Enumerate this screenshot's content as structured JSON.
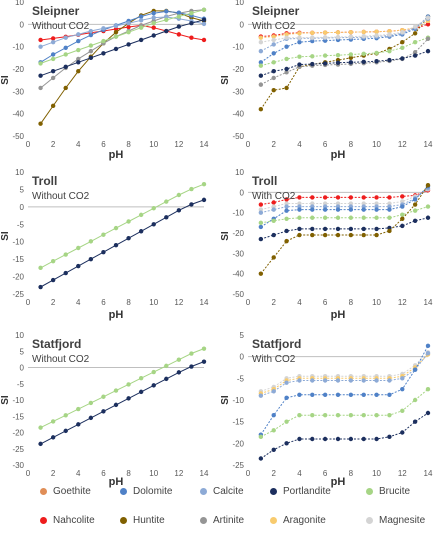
{
  "chart_data": [
    {
      "type": "line",
      "title": "Sleipner",
      "subtitle": "Without CO2",
      "xlabel": "pH",
      "ylabel": "SI",
      "xlim": [
        0,
        14
      ],
      "ylim": [
        -50,
        10
      ],
      "yticks": [
        10,
        0,
        -10,
        -20,
        -30,
        -40,
        -50
      ],
      "xticks": [
        0,
        2,
        4,
        6,
        8,
        10,
        12,
        14
      ],
      "x": [
        1,
        2,
        3,
        4,
        5,
        6,
        7,
        8,
        9,
        10,
        11,
        12,
        13,
        14
      ],
      "series": [
        {
          "name": "Nahcolite",
          "values": [
            -7,
            -6.3,
            -5.6,
            -4.7,
            -3.8,
            -3,
            -2.1,
            -1.2,
            -0.5,
            -1.5,
            -3,
            -4.5,
            -6,
            -7
          ]
        },
        {
          "name": "Huntite",
          "values": [
            -44.5,
            -36.5,
            -28.5,
            -21,
            -14.5,
            -8.5,
            -3.5,
            0.5,
            4,
            6,
            6,
            5,
            3,
            1.5
          ]
        },
        {
          "name": "Artinite",
          "values": [
            -28.5,
            -24,
            -19.5,
            -15.5,
            -12,
            -8.5,
            -5.5,
            -3,
            -0.5,
            1.5,
            3.5,
            5,
            6,
            6.5
          ]
        },
        {
          "name": "Dolomite",
          "values": [
            -17,
            -13.5,
            -10.5,
            -7.5,
            -4.8,
            -2.5,
            -0.5,
            1.5,
            3.5,
            5,
            5.8,
            5.2,
            4,
            2.5
          ]
        },
        {
          "name": "Calcite",
          "values": [
            -10,
            -8,
            -6,
            -4.5,
            -3,
            -1.8,
            -0.7,
            0.5,
            1.8,
            3,
            3.3,
            2.5,
            1.5,
            0.2
          ]
        },
        {
          "name": "Brucite",
          "values": [
            -17.5,
            -15.5,
            -13.5,
            -11.5,
            -9.5,
            -7.5,
            -5.5,
            -3.5,
            -1.5,
            0.5,
            2,
            3.5,
            5,
            6.5
          ]
        },
        {
          "name": "Portlandite",
          "values": [
            -23,
            -21,
            -19,
            -17,
            -15,
            -13,
            -11,
            -9,
            -7,
            -5,
            -3,
            -1,
            0.5,
            2
          ]
        }
      ]
    },
    {
      "type": "line",
      "title": "Sleipner",
      "subtitle": "With CO2",
      "xlabel": "pH",
      "ylabel": "SI",
      "xlim": [
        0,
        14
      ],
      "ylim": [
        -50,
        10
      ],
      "yticks": [
        10,
        0,
        -10,
        -20,
        -30,
        -40,
        -50
      ],
      "xticks": [
        0,
        2,
        4,
        6,
        8,
        10,
        12,
        14
      ],
      "x": [
        1,
        2,
        3,
        4,
        5,
        6,
        7,
        8,
        9,
        10,
        11,
        12,
        13,
        14
      ],
      "series": [
        {
          "name": "Nahcolite",
          "values": [
            -5.5,
            -5,
            -4,
            -3.8,
            -3.8,
            -3.7,
            -3.6,
            -3.5,
            -3.4,
            -3.3,
            -3.1,
            -2.6,
            -1.8,
            0
          ]
        },
        {
          "name": "Huntite",
          "values": [
            -38,
            -29.5,
            -28.5,
            -19,
            -18,
            -17,
            -16,
            -15,
            -14,
            -13,
            -11,
            -8,
            -4,
            3.5
          ]
        },
        {
          "name": "Aragonite",
          "values": [
            -6,
            -5.5,
            -4.5,
            -4,
            -3.8,
            -3.7,
            -3.6,
            -3.5,
            -3.4,
            -3.3,
            -3.1,
            -2.6,
            -1.5,
            1.5
          ]
        },
        {
          "name": "Dolomite",
          "values": [
            -17,
            -13,
            -10,
            -8,
            -7.5,
            -7.3,
            -7,
            -6.8,
            -6.5,
            -6.2,
            -5.5,
            -4.5,
            -2,
            3.5
          ]
        },
        {
          "name": "Calcite",
          "values": [
            -12,
            -9,
            -6.5,
            -6.3,
            -6.2,
            -6.1,
            -6,
            -5.9,
            -5.8,
            -5.5,
            -5,
            -4,
            -1.5,
            2.5
          ]
        },
        {
          "name": "Magnesite",
          "values": [
            -8,
            -7,
            -6,
            -6,
            -5.9,
            -5.8,
            -5.7,
            -5.5,
            -5.3,
            -5,
            -4.5,
            -3.5,
            -1,
            3
          ]
        },
        {
          "name": "Brucite",
          "values": [
            -18.5,
            -17,
            -15.5,
            -14.5,
            -14.3,
            -14,
            -13.8,
            -13.5,
            -13.2,
            -12.8,
            -12,
            -10.5,
            -8,
            -6
          ]
        },
        {
          "name": "Artinite",
          "values": [
            -27,
            -24,
            -21.5,
            -19,
            -18.5,
            -18.2,
            -18,
            -17.7,
            -17.4,
            -17,
            -16.4,
            -15.5,
            -12.5,
            -6.5
          ]
        },
        {
          "name": "Portlandite",
          "values": [
            -23,
            -21,
            -20,
            -18,
            -17.8,
            -17.5,
            -17.2,
            -17,
            -16.8,
            -16.5,
            -16,
            -15.3,
            -14,
            -12
          ]
        }
      ]
    },
    {
      "type": "line",
      "title": "Troll",
      "subtitle": "Without CO2",
      "xlabel": "pH",
      "ylabel": "SI",
      "xlim": [
        0,
        14
      ],
      "ylim": [
        -25,
        10
      ],
      "yticks": [
        10,
        5,
        0,
        -5,
        -10,
        -15,
        -20,
        -25
      ],
      "xticks": [
        0,
        2,
        4,
        6,
        8,
        10,
        12,
        14
      ],
      "x": [
        1,
        2,
        3,
        4,
        5,
        6,
        7,
        8,
        9,
        10,
        11,
        12,
        13,
        14
      ],
      "series": [
        {
          "name": "Brucite",
          "values": [
            -17.5,
            -15.6,
            -13.7,
            -11.8,
            -9.9,
            -8,
            -6.1,
            -4.2,
            -2.3,
            -0.4,
            1.5,
            3.4,
            5.1,
            6.5
          ]
        },
        {
          "name": "Portlandite",
          "values": [
            -23,
            -21,
            -19,
            -17,
            -15,
            -13,
            -11,
            -9,
            -7,
            -5,
            -3,
            -1,
            0.7,
            2
          ]
        }
      ]
    },
    {
      "type": "line",
      "title": "Troll",
      "subtitle": "With CO2",
      "xlabel": "pH",
      "ylabel": "SI",
      "xlim": [
        0,
        14
      ],
      "ylim": [
        -50,
        10
      ],
      "yticks": [
        10,
        0,
        -10,
        -20,
        -30,
        -40,
        -50
      ],
      "xticks": [
        0,
        2,
        4,
        6,
        8,
        10,
        12,
        14
      ],
      "x": [
        1,
        2,
        3,
        4,
        5,
        6,
        7,
        8,
        9,
        10,
        11,
        12,
        13,
        14
      ],
      "series": [
        {
          "name": "Nahcolite",
          "values": [
            -6,
            -5,
            -3.5,
            -2.5,
            -2.5,
            -2.5,
            -2.5,
            -2.5,
            -2.5,
            -2.5,
            -2.5,
            -2,
            -1.5,
            1
          ]
        },
        {
          "name": "Magnesite",
          "values": [
            -8.5,
            -7,
            -5.5,
            -5.5,
            -5.5,
            -5.5,
            -5.5,
            -5.5,
            -5.5,
            -5.5,
            -5.5,
            -4.5,
            -2,
            1.5
          ]
        },
        {
          "name": "Calcite",
          "values": [
            -10,
            -8.5,
            -7,
            -7,
            -7,
            -7,
            -7,
            -7,
            -7,
            -7,
            -7,
            -6,
            -3,
            2
          ]
        },
        {
          "name": "Dolomite",
          "values": [
            -17,
            -13,
            -9,
            -8.5,
            -8.5,
            -8.5,
            -8.5,
            -8.5,
            -8.5,
            -8.5,
            -8.5,
            -7,
            -3.5,
            3
          ]
        },
        {
          "name": "Brucite",
          "values": [
            -15,
            -14,
            -13,
            -12.5,
            -12.5,
            -12.5,
            -12.5,
            -12.5,
            -12.5,
            -12.5,
            -12.5,
            -11,
            -9,
            -7
          ]
        },
        {
          "name": "Portlandite",
          "values": [
            -23,
            -21,
            -19,
            -18,
            -18,
            -18,
            -18,
            -18,
            -18,
            -18,
            -17.5,
            -16.5,
            -14,
            -12.5
          ]
        },
        {
          "name": "Huntite",
          "values": [
            -40,
            -32,
            -24,
            -21,
            -21,
            -21,
            -21,
            -21,
            -21,
            -21,
            -19,
            -13,
            -6,
            3.5
          ]
        }
      ]
    },
    {
      "type": "line",
      "title": "Statfjord",
      "subtitle": "Without CO2",
      "xlabel": "pH",
      "ylabel": "SI",
      "xlim": [
        0,
        14
      ],
      "ylim": [
        -30,
        10
      ],
      "yticks": [
        10,
        5,
        0,
        -5,
        -10,
        -15,
        -20,
        -25,
        -30
      ],
      "xticks": [
        0,
        2,
        4,
        6,
        8,
        10,
        12,
        14
      ],
      "x": [
        1,
        2,
        3,
        4,
        5,
        6,
        7,
        8,
        9,
        10,
        11,
        12,
        13,
        14
      ],
      "series": [
        {
          "name": "Brucite",
          "values": [
            -18.5,
            -16.6,
            -14.7,
            -12.8,
            -10.9,
            -9,
            -7.1,
            -5.2,
            -3.3,
            -1.4,
            0.5,
            2.4,
            4.3,
            5.8
          ]
        },
        {
          "name": "Portlandite",
          "values": [
            -23.5,
            -21.5,
            -19.5,
            -17.5,
            -15.5,
            -13.5,
            -11.5,
            -9.5,
            -7.5,
            -5.5,
            -3.5,
            -1.5,
            0.3,
            1.8
          ]
        }
      ]
    },
    {
      "type": "line",
      "title": "Statfjord",
      "subtitle": "With CO2",
      "xlabel": "pH",
      "ylabel": "SI",
      "xlim": [
        0,
        14
      ],
      "ylim": [
        -25,
        5
      ],
      "yticks": [
        5,
        0,
        -5,
        -10,
        -15,
        -20,
        -25
      ],
      "xticks": [
        0,
        2,
        4,
        6,
        8,
        10,
        12,
        14
      ],
      "x": [
        1,
        2,
        3,
        4,
        5,
        6,
        7,
        8,
        9,
        10,
        11,
        12,
        13,
        14
      ],
      "series": [
        {
          "name": "Magnesite",
          "values": [
            -8,
            -7,
            -5,
            -4.5,
            -4.5,
            -4.5,
            -4.5,
            -4.5,
            -4.5,
            -4.5,
            -4.5,
            -4,
            -2,
            1
          ]
        },
        {
          "name": "Aragonite",
          "values": [
            -8.5,
            -7.5,
            -5.5,
            -5,
            -5,
            -5,
            -5,
            -5,
            -5,
            -5,
            -5,
            -4.5,
            -2.5,
            0.5
          ]
        },
        {
          "name": "Calcite",
          "values": [
            -9,
            -8,
            -6,
            -5.5,
            -5.5,
            -5.5,
            -5.5,
            -5.5,
            -5.5,
            -5.5,
            -5.5,
            -5,
            -3,
            0.8
          ]
        },
        {
          "name": "Dolomite",
          "values": [
            -18,
            -13.5,
            -9.5,
            -8.8,
            -8.8,
            -8.8,
            -8.8,
            -8.8,
            -8.8,
            -8.8,
            -8.8,
            -7.5,
            -3,
            2.5
          ]
        },
        {
          "name": "Brucite",
          "values": [
            -18.5,
            -17,
            -15,
            -13.5,
            -13.5,
            -13.5,
            -13.5,
            -13.5,
            -13.5,
            -13.5,
            -13.5,
            -12.5,
            -10,
            -7.5
          ]
        },
        {
          "name": "Portlandite",
          "values": [
            -23.5,
            -21.5,
            -20,
            -19,
            -19,
            -19,
            -19,
            -19,
            -19,
            -19,
            -18.5,
            -17.5,
            -15,
            -13
          ]
        }
      ]
    }
  ],
  "legend": [
    {
      "name": "Goethite",
      "color": "#E08E57"
    },
    {
      "name": "Dolomite",
      "color": "#4F81C7"
    },
    {
      "name": "Calcite",
      "color": "#8DAAD6"
    },
    {
      "name": "Portlandite",
      "color": "#1C2F5E"
    },
    {
      "name": "Brucite",
      "color": "#A6D585"
    },
    {
      "name": "Nahcolite",
      "color": "#EE1D1D"
    },
    {
      "name": "Huntite",
      "color": "#806000"
    },
    {
      "name": "Artinite",
      "color": "#959595"
    },
    {
      "name": "Aragonite",
      "color": "#F8CB6E"
    },
    {
      "name": "Magnesite",
      "color": "#D4D4D4"
    }
  ]
}
